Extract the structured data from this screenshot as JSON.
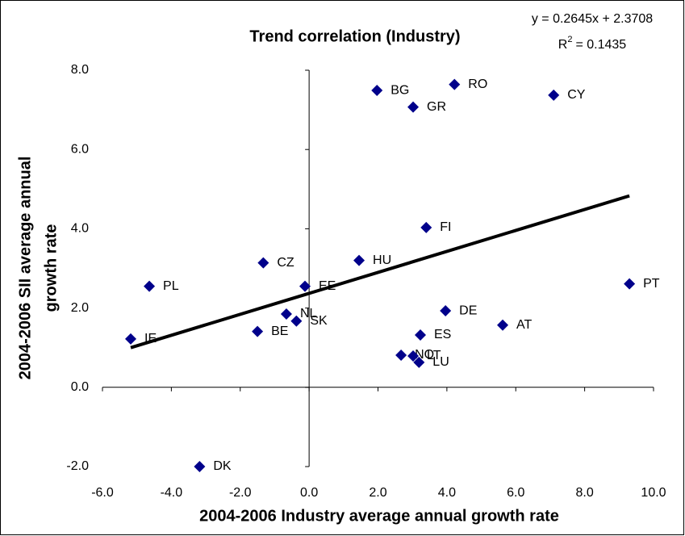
{
  "chart_data": {
    "type": "scatter",
    "title": "Trend correlation (Industry)",
    "xlabel": "2004-2006 Industry average annual growth rate",
    "ylabel": [
      "2004-2006 SII average annual",
      "growth rate"
    ],
    "labels": [
      "IE",
      "PL",
      "CZ",
      "BE",
      "NL",
      "SK",
      "EE",
      "HU",
      "BG",
      "GR",
      "RO",
      "CY",
      "FI",
      "PT",
      "DE",
      "AT",
      "ES",
      "NO",
      "LT",
      "LU",
      "DK"
    ],
    "x": [
      -5.18,
      -4.64,
      -1.33,
      -1.5,
      -0.66,
      -0.37,
      -0.12,
      1.45,
      1.97,
      3.02,
      4.22,
      7.1,
      3.4,
      9.3,
      3.96,
      5.62,
      3.23,
      2.67,
      3.02,
      3.19,
      -3.18
    ],
    "values": [
      1.22,
      2.55,
      3.14,
      1.41,
      1.85,
      1.67,
      2.55,
      3.2,
      7.49,
      7.07,
      7.64,
      7.37,
      4.03,
      2.61,
      1.93,
      1.57,
      1.32,
      0.81,
      0.79,
      0.63,
      -2.0
    ],
    "color": "#00008b",
    "trendline": {
      "slope": 0.2645,
      "intercept": 2.3708,
      "color": "#000000",
      "equation": "y = 0.2645x + 2.3708",
      "r2_symbol": "R",
      "r2_sup": "2",
      "r2_text": "= 0.1435"
    },
    "xlim": [
      -6,
      10
    ],
    "xticks": [
      {
        "value": -6,
        "label": "-6.0"
      },
      {
        "value": -4,
        "label": "-4.0"
      },
      {
        "value": -2,
        "label": "-2.0"
      },
      {
        "value": 0,
        "label": "0.0"
      },
      {
        "value": 2,
        "label": "2.0"
      },
      {
        "value": 4,
        "label": "4.0"
      },
      {
        "value": 6,
        "label": "6.0"
      },
      {
        "value": 8,
        "label": "8.0"
      },
      {
        "value": 10,
        "label": "10.0"
      }
    ],
    "ylim": [
      -2,
      8
    ],
    "yticks": [
      {
        "value": -2,
        "label": "-2.0"
      },
      {
        "value": 0,
        "label": "0.0"
      },
      {
        "value": 2,
        "label": "2.0"
      },
      {
        "value": 4,
        "label": "4.0"
      },
      {
        "value": 6,
        "label": "6.0"
      },
      {
        "value": 8,
        "label": "8.0"
      }
    ]
  }
}
